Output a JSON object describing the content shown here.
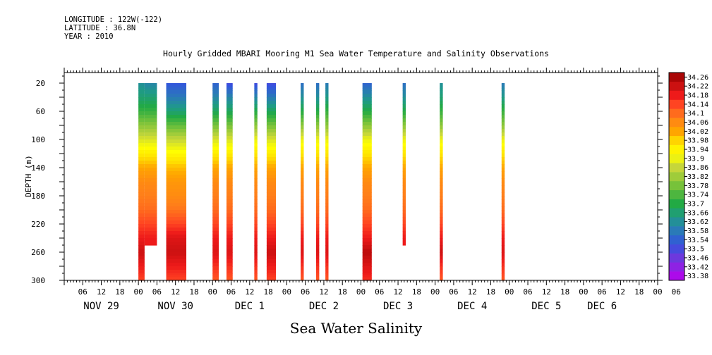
{
  "meta": {
    "longitude": "LONGITUDE : 122W(-122)",
    "latitude": "LATITUDE : 36.8N",
    "year": "YEAR : 2010"
  },
  "title": "Hourly Gridded MBARI Mooring M1 Sea Water Temperature and Salinity Observations",
  "bottom_title": "Sea Water Salinity",
  "chart_data": {
    "type": "heatmap",
    "title": "Hourly Gridded MBARI Mooring M1 Sea Water Temperature and Salinity Observations",
    "xlabel": "",
    "ylabel": "DEPTH (m)",
    "variable": "Sea Water Salinity",
    "xlim_hours": [
      0,
      192
    ],
    "ylim": [
      300,
      5
    ],
    "hour_tick_labels": [
      "06",
      "12",
      "18",
      "00",
      "06",
      "12",
      "18",
      "00",
      "06",
      "12",
      "18",
      "00",
      "06",
      "12",
      "18",
      "00",
      "06",
      "12",
      "18",
      "00",
      "06",
      "12",
      "18",
      "00",
      "06",
      "12",
      "18",
      "00",
      "06",
      "12",
      "18",
      "00",
      "06"
    ],
    "day_labels": [
      {
        "label": "NOV 29",
        "hour": 12
      },
      {
        "label": "NOV 30",
        "hour": 36
      },
      {
        "label": "DEC  1",
        "hour": 60
      },
      {
        "label": "DEC  2",
        "hour": 84
      },
      {
        "label": "DEC  3",
        "hour": 108
      },
      {
        "label": "DEC  4",
        "hour": 132
      },
      {
        "label": "DEC  5",
        "hour": 156
      },
      {
        "label": "DEC  6",
        "hour": 174
      }
    ],
    "depth_ticks": [
      20,
      60,
      100,
      140,
      180,
      220,
      260,
      300
    ],
    "colorbar_levels": [
      "33.38",
      "33.42",
      "33.46",
      "33.5",
      "33.54",
      "33.58",
      "33.62",
      "33.66",
      "33.7",
      "33.74",
      "33.78",
      "33.82",
      "33.86",
      "33.9",
      "33.94",
      "33.98",
      "34.02",
      "34.06",
      "34.1",
      "34.14",
      "34.18",
      "34.22",
      "34.26"
    ],
    "colorbar_range": [
      33.36,
      34.28
    ],
    "depths": [
      20,
      40,
      60,
      80,
      100,
      120,
      140,
      160,
      180,
      200,
      220,
      240,
      260,
      280,
      300
    ],
    "profiles": [
      {
        "start": 24.0,
        "end": 26.0,
        "salinity": [
          33.62,
          33.66,
          33.72,
          33.8,
          33.88,
          33.95,
          34.02,
          34.06,
          34.08,
          34.1,
          34.14,
          34.18,
          34.22,
          34.18,
          34.14
        ]
      },
      {
        "start": 26.0,
        "end": 30.0,
        "salinity": [
          33.6,
          33.66,
          33.72,
          33.8,
          33.88,
          33.95,
          34.02,
          34.06,
          34.08,
          34.1,
          34.14,
          34.18,
          null,
          null,
          null
        ]
      },
      {
        "start": 33.0,
        "end": 39.5,
        "salinity": [
          33.52,
          33.58,
          33.66,
          33.76,
          33.86,
          33.93,
          34.0,
          34.04,
          34.06,
          34.09,
          34.14,
          34.2,
          34.22,
          34.18,
          34.14
        ]
      },
      {
        "start": 48.0,
        "end": 50.0,
        "salinity": [
          33.54,
          33.6,
          33.68,
          33.78,
          33.88,
          33.95,
          34.02,
          34.06,
          34.08,
          34.1,
          34.14,
          34.18,
          34.2,
          34.16,
          34.12
        ]
      },
      {
        "start": 52.5,
        "end": 54.5,
        "salinity": [
          33.5,
          33.6,
          33.68,
          33.78,
          33.88,
          33.95,
          34.02,
          34.06,
          34.08,
          34.1,
          34.14,
          34.18,
          34.2,
          34.16,
          34.12
        ]
      },
      {
        "start": 61.5,
        "end": 62.5,
        "salinity": [
          33.5,
          33.6,
          33.7,
          33.8,
          33.9,
          33.96,
          34.02,
          34.06,
          34.08,
          34.1,
          34.14,
          34.18,
          34.2,
          34.16,
          34.12
        ]
      },
      {
        "start": 65.5,
        "end": 68.5,
        "salinity": [
          33.5,
          33.58,
          33.68,
          33.78,
          33.88,
          33.95,
          34.02,
          34.06,
          34.08,
          34.1,
          34.14,
          34.18,
          34.22,
          34.18,
          34.14
        ]
      },
      {
        "start": 76.5,
        "end": 77.5,
        "salinity": [
          33.56,
          33.62,
          33.7,
          33.8,
          33.9,
          33.96,
          34.02,
          34.06,
          34.08,
          34.1,
          34.14,
          34.18,
          34.2,
          34.16,
          34.12
        ]
      },
      {
        "start": 81.5,
        "end": 82.5,
        "salinity": [
          33.56,
          33.62,
          33.7,
          33.8,
          33.9,
          33.96,
          34.02,
          34.06,
          34.08,
          34.1,
          34.14,
          34.18,
          34.2,
          34.16,
          34.12
        ]
      },
      {
        "start": 84.5,
        "end": 85.5,
        "salinity": [
          33.58,
          33.64,
          33.72,
          33.8,
          33.9,
          33.96,
          34.02,
          34.06,
          34.08,
          34.1,
          34.14,
          34.18,
          34.2,
          34.16,
          34.12
        ]
      },
      {
        "start": 96.5,
        "end": 99.5,
        "salinity": [
          33.54,
          33.62,
          33.7,
          33.8,
          33.9,
          33.96,
          34.02,
          34.06,
          34.08,
          34.1,
          34.14,
          34.18,
          34.24,
          34.2,
          34.16
        ]
      },
      {
        "start": 109.5,
        "end": 110.5,
        "salinity": [
          33.56,
          33.62,
          33.7,
          33.8,
          33.9,
          33.96,
          34.02,
          34.06,
          34.08,
          34.1,
          34.14,
          34.18,
          null,
          null,
          null
        ]
      },
      {
        "start": 121.5,
        "end": 122.5,
        "salinity": [
          33.62,
          33.66,
          33.72,
          33.8,
          33.9,
          33.96,
          34.02,
          34.06,
          34.08,
          34.1,
          34.14,
          34.18,
          34.22,
          34.16,
          34.12
        ]
      },
      {
        "start": 141.5,
        "end": 142.5,
        "salinity": [
          33.58,
          33.64,
          33.72,
          33.8,
          33.9,
          33.96,
          34.02,
          34.06,
          34.08,
          34.1,
          34.14,
          34.18,
          34.2,
          34.16,
          34.12
        ]
      }
    ]
  }
}
